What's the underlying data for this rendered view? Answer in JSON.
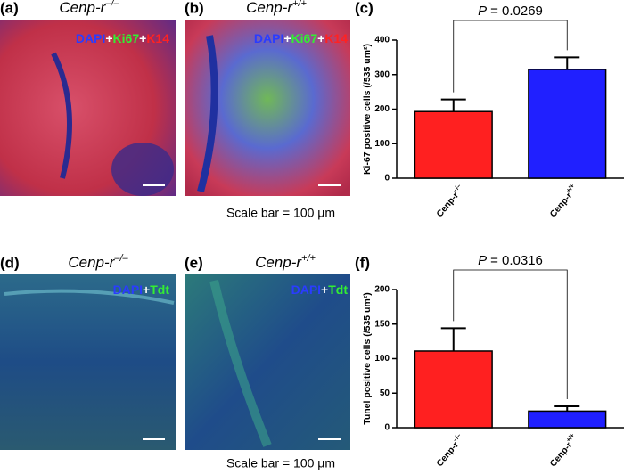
{
  "panels": [
    {
      "label": "(a)",
      "title": "Cenp-r",
      "title_sup": "–/–",
      "stain": [
        {
          "text": "DAPI",
          "color": "#2a3cff"
        },
        {
          "text": "+",
          "color": "#ffffff"
        },
        {
          "text": "Ki67",
          "color": "#33ee33"
        },
        {
          "text": "+",
          "color": "#ffffff"
        },
        {
          "text": "K14",
          "color": "#ff2222"
        }
      ]
    },
    {
      "label": "(b)",
      "title": "Cenp-r",
      "title_sup": "+/+",
      "stain": [
        {
          "text": "DAPI",
          "color": "#2a3cff"
        },
        {
          "text": "+",
          "color": "#ffffff"
        },
        {
          "text": "Ki67",
          "color": "#33ee33"
        },
        {
          "text": "+",
          "color": "#ffffff"
        },
        {
          "text": "K14",
          "color": "#ff2222"
        }
      ]
    },
    {
      "label": "(d)",
      "title": "Cenp-r",
      "title_sup": "–/–",
      "stain": [
        {
          "text": "DAPI",
          "color": "#2a3cff"
        },
        {
          "text": "+",
          "color": "#ffffff"
        },
        {
          "text": "Tdt",
          "color": "#33ee33"
        }
      ]
    },
    {
      "label": "(e)",
      "title": "Cenp-r",
      "title_sup": "+/+",
      "stain": [
        {
          "text": "DAPI",
          "color": "#2a3cff"
        },
        {
          "text": "+",
          "color": "#ffffff"
        },
        {
          "text": "Tdt",
          "color": "#33ee33"
        }
      ]
    }
  ],
  "scale_bar_labels": [
    "Scale bar = 100 μm",
    "Scale bar = 100 μm"
  ],
  "chart_data": [
    {
      "type": "bar",
      "panel_label": "(c)",
      "ylabel": "Ki-67 positive cells (/535 um²)",
      "categories": [
        "Cenp-r",
        "Cenp-r"
      ],
      "category_superscripts": [
        "–/–",
        "+/+"
      ],
      "values": [
        193,
        315
      ],
      "errors": [
        35,
        35
      ],
      "colors": [
        "#ff2020",
        "#2020ff"
      ],
      "ylim": [
        0,
        400
      ],
      "yticks": [
        0,
        100,
        200,
        300,
        400
      ],
      "annotation": {
        "p": "P",
        "text": "= 0.0269"
      }
    },
    {
      "type": "bar",
      "panel_label": "(f)",
      "ylabel": "Tunel positive cells (/535 um²)",
      "categories": [
        "Cenp-r",
        "Cenp-r"
      ],
      "category_superscripts": [
        "–/–",
        "+/+"
      ],
      "values": [
        111,
        24
      ],
      "errors": [
        33,
        7
      ],
      "colors": [
        "#ff2020",
        "#2020ff"
      ],
      "ylim": [
        0,
        200
      ],
      "yticks": [
        0,
        50,
        100,
        150,
        200
      ],
      "annotation": {
        "p": "P",
        "text": "= 0.0316"
      }
    }
  ]
}
